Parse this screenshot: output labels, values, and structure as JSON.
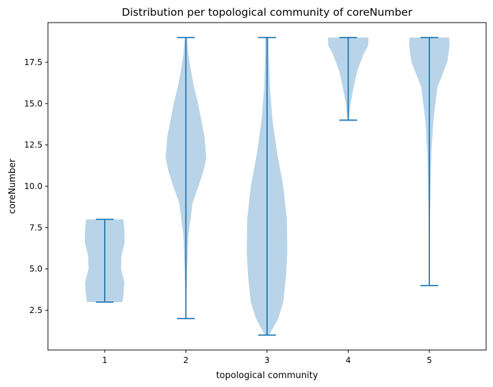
{
  "chart_data": {
    "type": "violin",
    "title": "Distribution per topological community of coreNumber",
    "xlabel": "topological community",
    "ylabel": "coreNumber",
    "categories": [
      "1",
      "2",
      "3",
      "4",
      "5"
    ],
    "ylim": [
      0.1,
      19.9
    ],
    "yticks": [
      2.5,
      5.0,
      7.5,
      10.0,
      12.5,
      15.0,
      17.5
    ],
    "ytick_labels": [
      "2.5",
      "5.0",
      "7.5",
      "10.0",
      "12.5",
      "15.0",
      "17.5"
    ],
    "grid": false,
    "legend": "none",
    "colors": {
      "body": "#b9d4e8",
      "line": "#1f77b4"
    },
    "series": [
      {
        "category": "1",
        "min": 3,
        "max": 8,
        "density": [
          [
            3,
            0.88
          ],
          [
            3.4,
            0.92
          ],
          [
            4.2,
            0.97
          ],
          [
            5.0,
            0.8
          ],
          [
            5.8,
            0.82
          ],
          [
            6.6,
            0.98
          ],
          [
            7.4,
            0.97
          ],
          [
            8,
            0.92
          ]
        ]
      },
      {
        "category": "2",
        "min": 2,
        "max": 19,
        "density": [
          [
            2,
            0.0
          ],
          [
            3.5,
            0.03
          ],
          [
            5,
            0.06
          ],
          [
            7,
            0.12
          ],
          [
            9,
            0.33
          ],
          [
            10,
            0.62
          ],
          [
            11,
            0.88
          ],
          [
            11.7,
            1.0
          ],
          [
            13,
            0.92
          ],
          [
            14,
            0.76
          ],
          [
            15,
            0.6
          ],
          [
            16,
            0.4
          ],
          [
            17,
            0.25
          ],
          [
            18,
            0.12
          ],
          [
            19,
            0.05
          ]
        ]
      },
      {
        "category": "3",
        "min": 1,
        "max": 19,
        "density": [
          [
            1,
            0.1
          ],
          [
            2,
            0.55
          ],
          [
            3,
            0.8
          ],
          [
            4.5,
            0.93
          ],
          [
            6,
            1.0
          ],
          [
            8,
            0.98
          ],
          [
            10,
            0.8
          ],
          [
            12,
            0.5
          ],
          [
            14,
            0.27
          ],
          [
            16,
            0.14
          ],
          [
            18,
            0.09
          ],
          [
            19,
            0.09
          ]
        ]
      },
      {
        "category": "4",
        "min": 14,
        "max": 19,
        "density": [
          [
            14,
            0.02
          ],
          [
            15,
            0.12
          ],
          [
            16,
            0.27
          ],
          [
            17,
            0.45
          ],
          [
            18,
            0.76
          ],
          [
            18.5,
            0.98
          ],
          [
            19,
            1.0
          ]
        ]
      },
      {
        "category": "5",
        "min": 4,
        "max": 19,
        "density": [
          [
            4,
            0.01
          ],
          [
            6,
            0.02
          ],
          [
            8,
            0.03
          ],
          [
            10,
            0.06
          ],
          [
            12,
            0.1
          ],
          [
            14,
            0.2
          ],
          [
            16,
            0.4
          ],
          [
            17.5,
            0.88
          ],
          [
            18.5,
            1.0
          ],
          [
            19,
            0.97
          ]
        ]
      }
    ]
  }
}
